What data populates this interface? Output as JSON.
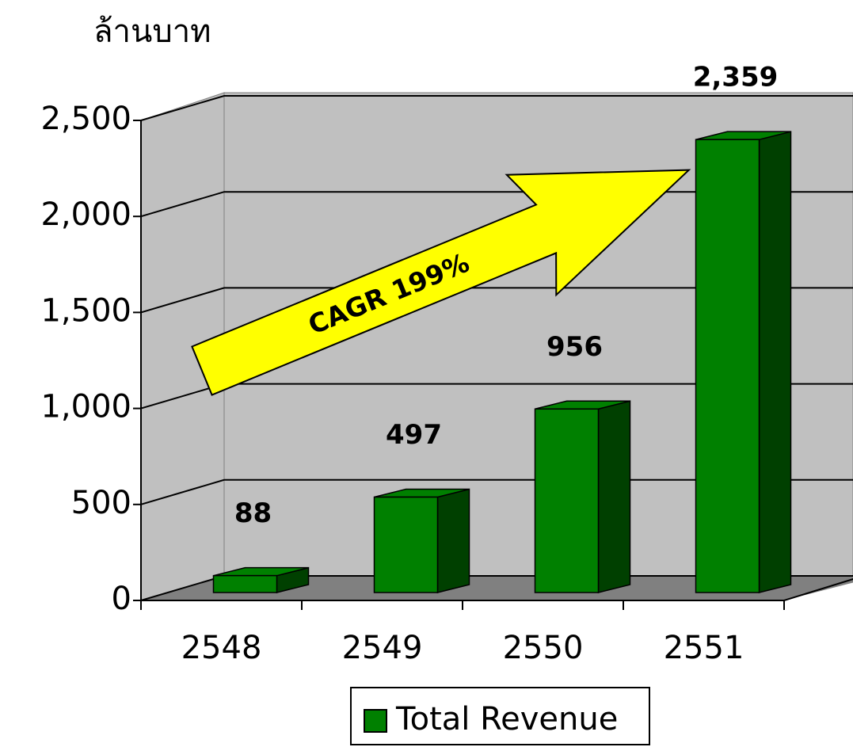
{
  "chart_data": {
    "type": "bar3d",
    "y_axis_title": "ล้านบาท",
    "annotation": "CAGR 199%",
    "categories": [
      "2548",
      "2549",
      "2550",
      "2551"
    ],
    "series": [
      {
        "name": "Total Revenue",
        "color": "#008000",
        "values": [
          88,
          497,
          956,
          2359
        ],
        "value_labels": [
          "88",
          "497",
          "956",
          "2,359"
        ]
      }
    ],
    "ylim": [
      0,
      2500
    ],
    "yticks": [
      0,
      500,
      {
        "value": 1000,
        "label": "1,000"
      },
      {
        "value": 1500,
        "label": "1,500"
      },
      {
        "value": 2000,
        "label": "2,000"
      },
      {
        "value": 2500,
        "label": "2,500"
      }
    ],
    "grid": true,
    "legend": "bottom"
  }
}
